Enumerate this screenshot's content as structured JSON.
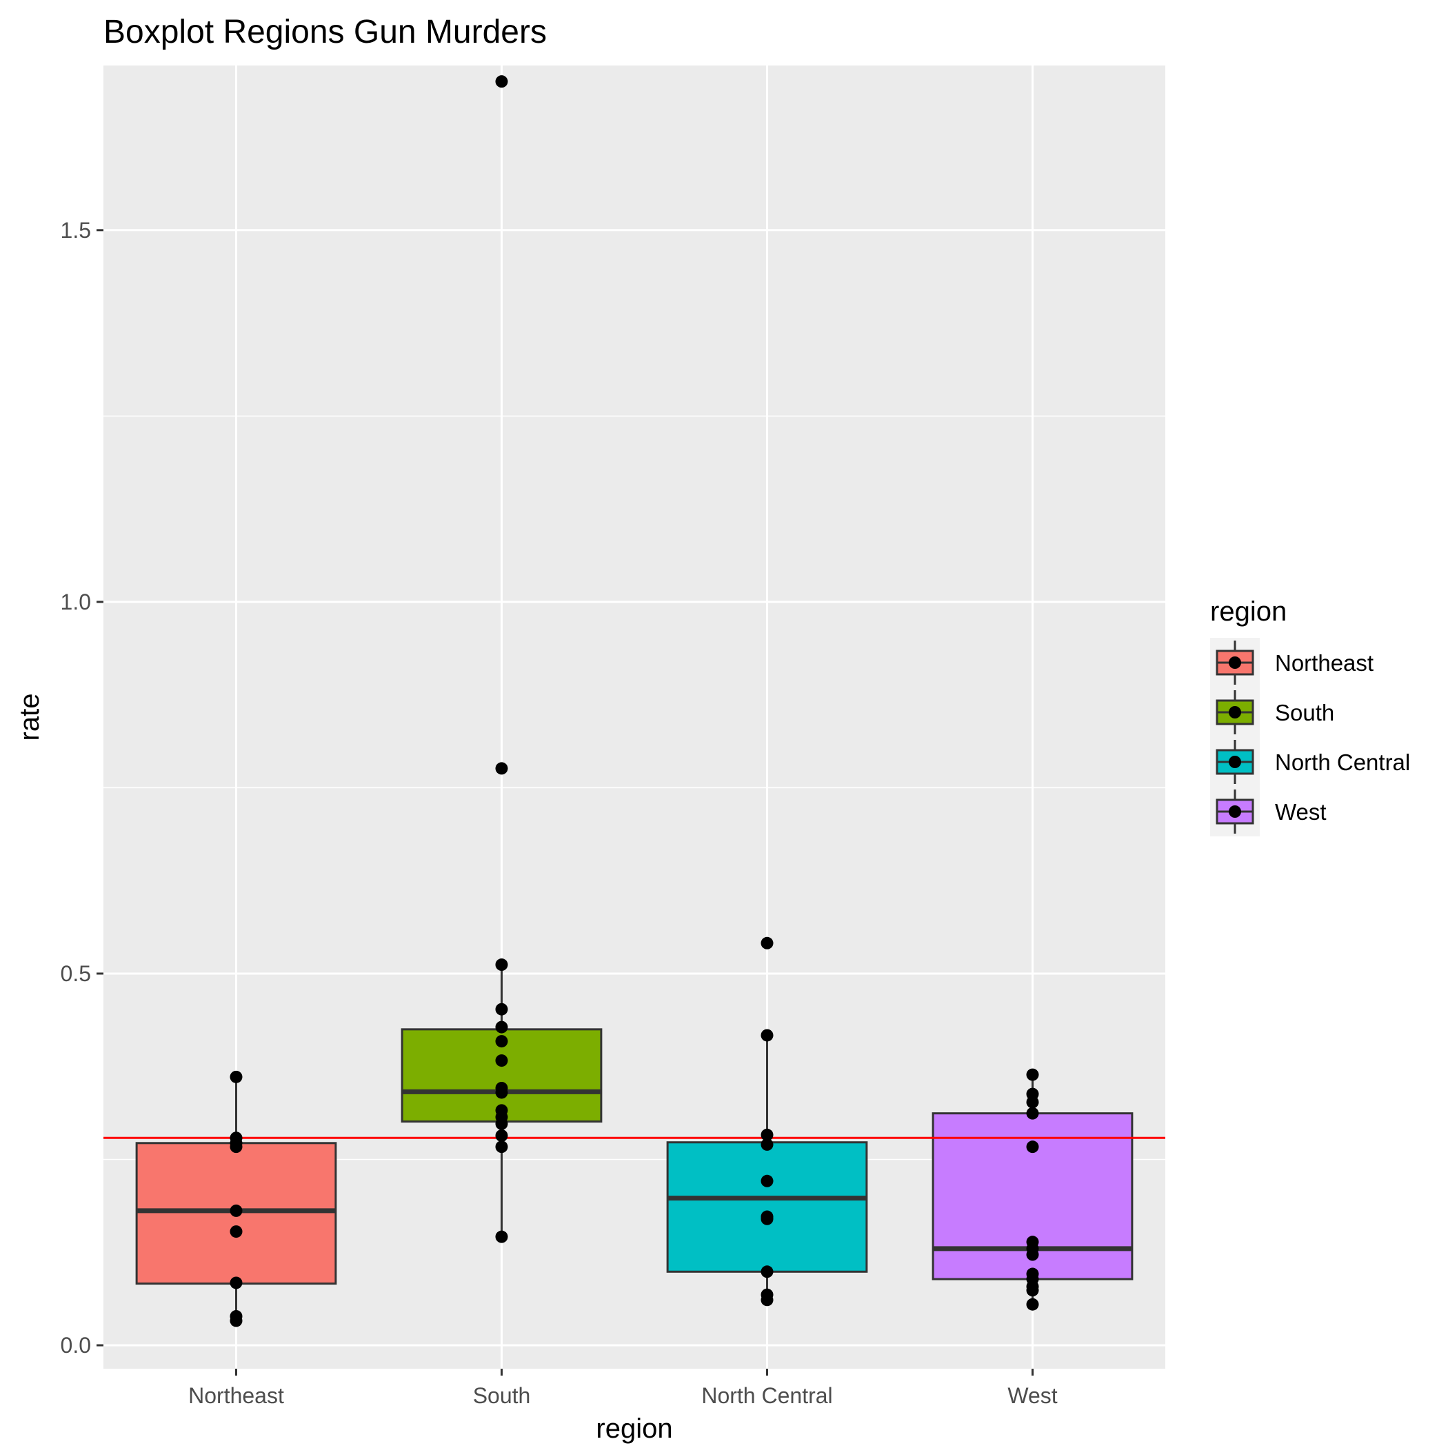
{
  "chart_data": {
    "type": "boxplot",
    "title": "Boxplot Regions Gun Murders",
    "xlabel": "region",
    "ylabel": "rate",
    "ylim": [
      -0.0315,
      1.7215
    ],
    "yticks": [
      0.0,
      0.5,
      1.0,
      1.5
    ],
    "ytick_labels": [
      "0.0",
      "0.5",
      "1.0",
      "1.5"
    ],
    "categories": [
      "Northeast",
      "South",
      "North Central",
      "West"
    ],
    "colors": {
      "Northeast": "#F8766D",
      "South": "#7CAE00",
      "North Central": "#00BFC4",
      "West": "#C77CFF"
    },
    "panel_background": "#EBEBEB",
    "grid": true,
    "reference_line": {
      "y": 0.279,
      "color": "#FF0000"
    },
    "boxes": [
      {
        "name": "Northeast",
        "q1": 0.083,
        "median": 0.181,
        "q3": 0.272,
        "whisker_low": 0.033,
        "whisker_high": 0.361
      },
      {
        "name": "South",
        "q1": 0.301,
        "median": 0.341,
        "q3": 0.425,
        "whisker_low": 0.146,
        "whisker_high": 0.512
      },
      {
        "name": "North Central",
        "q1": 0.099,
        "median": 0.198,
        "q3": 0.273,
        "whisker_low": 0.061,
        "whisker_high": 0.417
      },
      {
        "name": "West",
        "q1": 0.089,
        "median": 0.13,
        "q3": 0.312,
        "whisker_low": 0.055,
        "whisker_high": 0.364
      }
    ],
    "points": [
      {
        "category": "Northeast",
        "values": [
          0.361,
          0.279,
          0.272,
          0.267,
          0.181,
          0.153,
          0.084,
          0.039,
          0.033
        ]
      },
      {
        "category": "South",
        "values": [
          1.7,
          0.776,
          0.512,
          0.452,
          0.428,
          0.409,
          0.383,
          0.346,
          0.34,
          0.316,
          0.307,
          0.298,
          0.282,
          0.267,
          0.146
        ]
      },
      {
        "category": "North Central",
        "values": [
          0.541,
          0.417,
          0.283,
          0.27,
          0.221,
          0.173,
          0.17,
          0.099,
          0.068,
          0.061
        ]
      },
      {
        "category": "West",
        "values": [
          0.364,
          0.338,
          0.327,
          0.312,
          0.267,
          0.139,
          0.13,
          0.122,
          0.096,
          0.089,
          0.079,
          0.074,
          0.055
        ]
      }
    ],
    "legend": {
      "title": "region",
      "position": "right",
      "items": [
        "Northeast",
        "South",
        "North Central",
        "West"
      ]
    }
  }
}
